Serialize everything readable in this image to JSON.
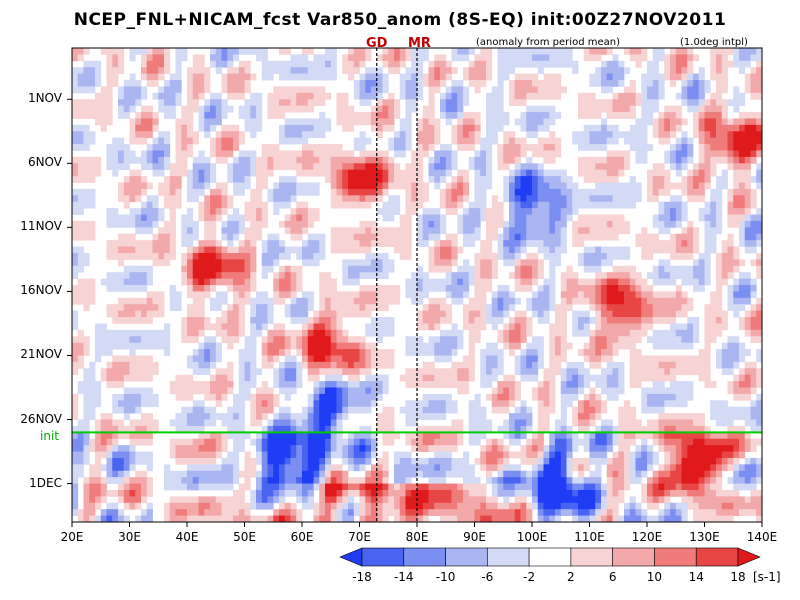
{
  "title": "NCEP_FNL+NICAM_fcst Var850_anom (8S-EQ) init:00Z27NOV2011",
  "markers": [
    {
      "label": "GD",
      "lon": 73
    },
    {
      "label": "MR",
      "lon": 80
    }
  ],
  "notes": {
    "anomaly": "(anomaly from period mean)",
    "interp": "(1.0deg intpl)"
  },
  "init_label": "init",
  "colorbar": {
    "levels": [
      "-18",
      "-14",
      "-10",
      "-6",
      "-2",
      "2",
      "6",
      "10",
      "14",
      "18"
    ],
    "unit": "[s-1]",
    "colors": [
      "#1f3df5",
      "#4a64f2",
      "#7b8ef1",
      "#a9b6f1",
      "#d3daf6",
      "#ffffff",
      "#f7d3d3",
      "#f3a9a9",
      "#ef7b7b",
      "#e84545",
      "#e01a1a"
    ]
  },
  "chart_data": {
    "type": "heatmap",
    "title": "NCEP_FNL+NICAM_fcst Var850_anom (8S-EQ) init:00Z27NOV2011",
    "x_ticks": [
      "20E",
      "30E",
      "40E",
      "50E",
      "60E",
      "70E",
      "80E",
      "90E",
      "100E",
      "110E",
      "120E",
      "130E",
      "140E"
    ],
    "xlim": [
      20,
      140
    ],
    "y_ticks": [
      "1NOV",
      "6NOV",
      "11NOV",
      "16NOV",
      "21NOV",
      "26NOV",
      "1DEC"
    ],
    "y_tick_days": [
      5,
      10,
      15,
      20,
      25,
      30,
      35
    ],
    "ylim_days": [
      1,
      38
    ],
    "init_day": 31,
    "vertical_lines_lon": [
      73,
      80
    ],
    "missing_band_lon": [
      33.7,
      35.4
    ],
    "features": [
      {
        "lon": 64,
        "day": 24,
        "sign": 1
      },
      {
        "lon": 57,
        "day": 33,
        "sign": -1
      },
      {
        "lon": 64,
        "day": 29,
        "sign": -1
      },
      {
        "lon": 44,
        "day": 18,
        "sign": 1
      },
      {
        "lon": 70,
        "day": 11,
        "sign": 1
      },
      {
        "lon": 115,
        "day": 21,
        "sign": 1
      },
      {
        "lon": 100,
        "day": 13,
        "sign": -1
      },
      {
        "lon": 135,
        "day": 8,
        "sign": 1
      },
      {
        "lon": 104,
        "day": 35,
        "sign": -1
      },
      {
        "lon": 128,
        "day": 33,
        "sign": 1
      }
    ]
  }
}
